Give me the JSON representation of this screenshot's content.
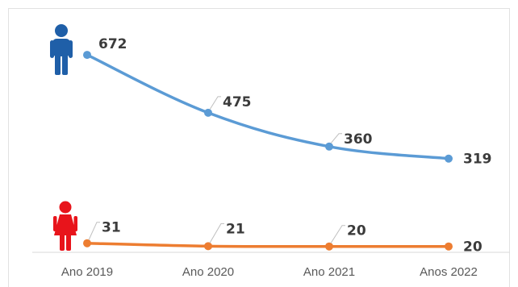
{
  "chart_data": {
    "type": "line",
    "categories": [
      "Ano 2019",
      "Ano 2020",
      "Ano 2021",
      "Anos 2022"
    ],
    "series": [
      {
        "values": [
          672,
          475,
          360,
          319
        ],
        "color": "#5b9bd5",
        "icon": "male-person-icon"
      },
      {
        "values": [
          31,
          21,
          20,
          20
        ],
        "color": "#ed7d31",
        "icon": "female-person-icon"
      }
    ],
    "ylim": [
      0,
      760
    ],
    "grid": false,
    "legend": "none"
  },
  "colors": {
    "male_icon": "#1f5fa8",
    "female_icon": "#e8141b",
    "axis": "#d9d9d9",
    "label_text": "#3b3b3b",
    "tick_text": "#595959"
  }
}
